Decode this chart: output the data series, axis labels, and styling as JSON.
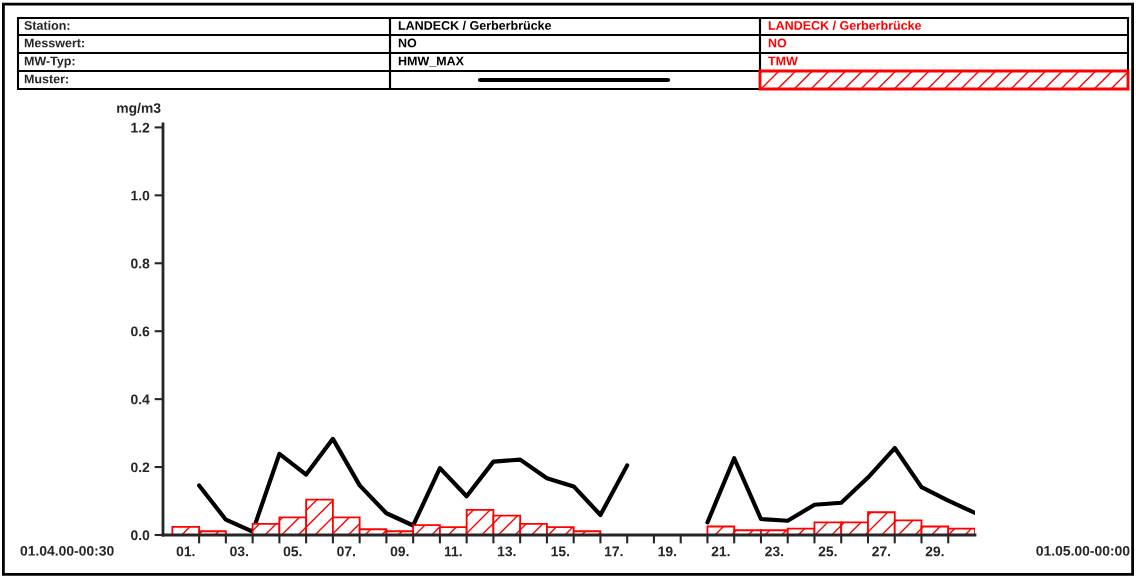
{
  "chart_data": {
    "type": "line",
    "ylabel": "mg/m3",
    "xlim": [
      -0.35,
      30
    ],
    "xticks": [
      {
        "value": 1,
        "label": null
      },
      {
        "value": 2,
        "label": null
      },
      {
        "value": 3,
        "label": null
      },
      {
        "value": 4,
        "label": null
      },
      {
        "value": 5,
        "label": null
      },
      {
        "value": 6,
        "label": null
      },
      {
        "value": 7,
        "label": null
      },
      {
        "value": 8,
        "label": null
      },
      {
        "value": 9,
        "label": null
      },
      {
        "value": 10,
        "label": null
      },
      {
        "value": 11,
        "label": null
      },
      {
        "value": 12,
        "label": null
      },
      {
        "value": 13,
        "label": null
      },
      {
        "value": 14,
        "label": null
      },
      {
        "value": 15,
        "label": null
      },
      {
        "value": 16,
        "label": null
      },
      {
        "value": 17,
        "label": null
      },
      {
        "value": 18,
        "label": null
      },
      {
        "value": 19,
        "label": null
      },
      {
        "value": 20,
        "label": null
      },
      {
        "value": 21,
        "label": null
      },
      {
        "value": 22,
        "label": null
      },
      {
        "value": 23,
        "label": null
      },
      {
        "value": 24,
        "label": null
      },
      {
        "value": 25,
        "label": null
      },
      {
        "value": 26,
        "label": null
      },
      {
        "value": 27,
        "label": null
      },
      {
        "value": 28,
        "label": null
      },
      {
        "value": 29,
        "label": null
      },
      {
        "value": 0.5,
        "label": "01."
      },
      {
        "value": 2.5,
        "label": "03."
      },
      {
        "value": 4.5,
        "label": "05."
      },
      {
        "value": 6.5,
        "label": "07."
      },
      {
        "value": 8.5,
        "label": "09."
      },
      {
        "value": 10.5,
        "label": "11."
      },
      {
        "value": 12.5,
        "label": "13."
      },
      {
        "value": 14.5,
        "label": "15."
      },
      {
        "value": 16.5,
        "label": "17."
      },
      {
        "value": 18.5,
        "label": "19."
      },
      {
        "value": 20.5,
        "label": "21."
      },
      {
        "value": 22.5,
        "label": "23."
      },
      {
        "value": 24.5,
        "label": "25."
      },
      {
        "value": 26.5,
        "label": "27."
      },
      {
        "value": 28.5,
        "label": "29."
      }
    ],
    "ylim": [
      0,
      1.21
    ],
    "yticks": [
      {
        "value": 0,
        "label": "0.0"
      },
      {
        "value": 0.2,
        "label": "0.2"
      },
      {
        "value": 0.4,
        "label": "0.4"
      },
      {
        "value": 0.6,
        "label": "0.6"
      },
      {
        "value": 0.8,
        "label": "0.8"
      },
      {
        "value": 1.0,
        "label": "1.0"
      },
      {
        "value": 1.2,
        "label": "1.2"
      }
    ],
    "grid": false,
    "legend": "top",
    "annotations": [
      "Station:",
      "Messwert:",
      "MW-Typ:",
      "Muster:",
      "LANDECK / Gerberbrücke",
      "NO",
      "LANDECK / Gerberbrücke",
      "NO",
      "01.04.00-00:30",
      "01.05.00-00:00"
    ],
    "series": [
      {
        "name": "HMW_MAX",
        "color": "#000000",
        "x": [
          1,
          2,
          3,
          4,
          5,
          6,
          7,
          8,
          9,
          10,
          11,
          12,
          13,
          14,
          15,
          16,
          17,
          18,
          19,
          20,
          21,
          22,
          23,
          24,
          25,
          26,
          27,
          28,
          29,
          30
        ],
        "values": [
          0.146,
          0.045,
          0.01,
          0.239,
          0.178,
          0.283,
          0.146,
          0.064,
          0.028,
          0.197,
          0.114,
          0.216,
          0.222,
          0.167,
          0.143,
          0.059,
          0.205,
          null,
          null,
          0.037,
          0.226,
          0.047,
          0.042,
          0.089,
          0.095,
          0.169,
          0.256,
          0.141,
          0.101,
          0.065
        ]
      },
      {
        "name": "TMW",
        "type": "bar",
        "color": "#ff0000",
        "x": [
          0.5,
          1.5,
          2.5,
          3.5,
          4.5,
          5.5,
          6.5,
          7.5,
          8.5,
          9.5,
          10.5,
          11.5,
          12.5,
          13.5,
          14.5,
          15.5,
          16.5,
          17.5,
          18.5,
          19.5,
          20.5,
          21.5,
          22.5,
          23.5,
          24.5,
          25.5,
          26.5,
          27.5,
          28.5,
          29.5
        ],
        "values": [
          0.024,
          0.011,
          null,
          0.033,
          0.052,
          0.104,
          0.052,
          0.017,
          0.011,
          0.029,
          0.023,
          0.074,
          0.057,
          0.033,
          0.023,
          0.011,
          null,
          null,
          null,
          null,
          0.025,
          0.014,
          0.014,
          0.019,
          0.037,
          0.037,
          0.067,
          0.043,
          0.025,
          0.019
        ]
      }
    ]
  }
}
